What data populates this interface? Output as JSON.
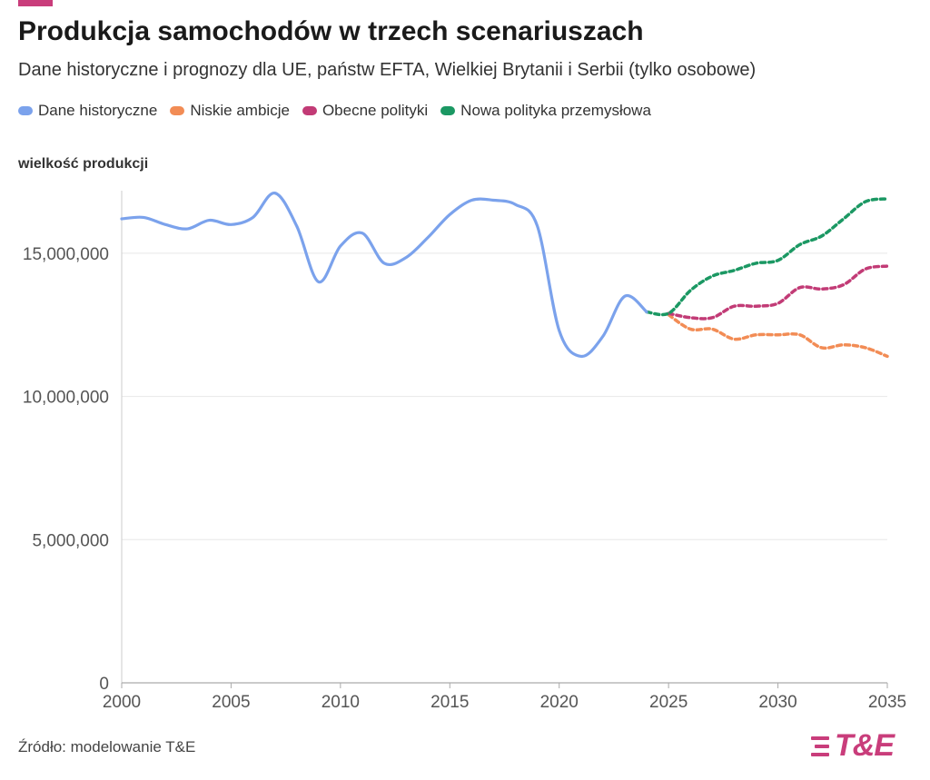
{
  "header": {
    "title": "Produkcja samochodów w trzech scenariuszach",
    "subtitle": "Dane historyczne i prognozy dla UE, państw EFTA, Wielkiej Brytanii i Serbii (tylko osobowe)"
  },
  "legend": [
    {
      "label": "Dane historyczne",
      "color": "#7ba2ec"
    },
    {
      "label": "Niskie ambicje",
      "color": "#f28c55"
    },
    {
      "label": "Obecne polityki",
      "color": "#c23b76"
    },
    {
      "label": "Nowa polityka przemysłowa",
      "color": "#1b9863"
    }
  ],
  "footer": {
    "source": "Źródło: modelowanie T&E",
    "logo_text": "T&E"
  },
  "colors": {
    "accent": "#c93d7b",
    "grid": "#e8e8e8",
    "axis": "#cccccc"
  },
  "chart_data": {
    "type": "line",
    "ylabel": "wielkość produkcji",
    "xlim": [
      2000,
      2035
    ],
    "ylim": [
      0,
      17500000
    ],
    "x_ticks": [
      2000,
      2005,
      2010,
      2015,
      2020,
      2025,
      2030,
      2035
    ],
    "y_ticks": [
      0,
      5000000,
      10000000,
      15000000
    ],
    "y_tick_labels": [
      "0",
      "5,000,000",
      "10,000,000",
      "15,000,000"
    ],
    "grid": "horizontal",
    "legend_position": "top-left",
    "series": [
      {
        "name": "Dane historyczne",
        "color": "#7ba2ec",
        "style": "solid",
        "x": [
          2000,
          2001,
          2002,
          2003,
          2004,
          2005,
          2006,
          2007,
          2008,
          2009,
          2010,
          2011,
          2012,
          2013,
          2014,
          2015,
          2016,
          2017,
          2018,
          2019,
          2020,
          2021,
          2022,
          2023,
          2024
        ],
        "y": [
          16200000,
          16250000,
          16000000,
          15850000,
          16150000,
          16000000,
          16250000,
          17100000,
          15950000,
          14000000,
          15250000,
          15700000,
          14650000,
          14850000,
          15550000,
          16350000,
          16850000,
          16850000,
          16700000,
          15950000,
          12300000,
          11400000,
          12100000,
          13500000,
          12950000
        ]
      },
      {
        "name": "Niskie ambicje",
        "color": "#f28c55",
        "style": "dashed",
        "x": [
          2025,
          2026,
          2027,
          2028,
          2029,
          2030,
          2031,
          2032,
          2033,
          2034,
          2035
        ],
        "y": [
          12850000,
          12350000,
          12350000,
          12000000,
          12150000,
          12150000,
          12150000,
          11700000,
          11800000,
          11700000,
          11400000
        ]
      },
      {
        "name": "Obecne polityki",
        "color": "#c23b76",
        "style": "dashed",
        "x": [
          2025,
          2026,
          2027,
          2028,
          2029,
          2030,
          2031,
          2032,
          2033,
          2034,
          2035
        ],
        "y": [
          12900000,
          12750000,
          12750000,
          13150000,
          13150000,
          13250000,
          13800000,
          13750000,
          13900000,
          14450000,
          14550000
        ]
      },
      {
        "name": "Nowa polityka przemysłowa",
        "color": "#1b9863",
        "style": "dashed",
        "x": [
          2024,
          2025,
          2026,
          2027,
          2028,
          2029,
          2030,
          2031,
          2032,
          2033,
          2034,
          2035
        ],
        "y": [
          12950000,
          12900000,
          13700000,
          14200000,
          14400000,
          14650000,
          14750000,
          15300000,
          15600000,
          16200000,
          16800000,
          16900000
        ]
      }
    ]
  }
}
